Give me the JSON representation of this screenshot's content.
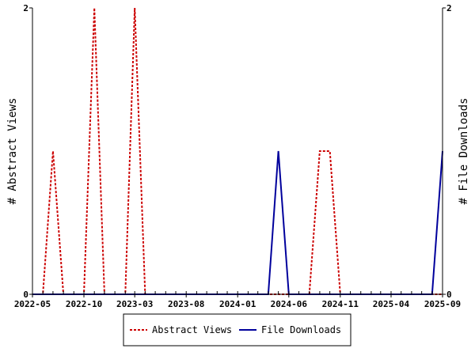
{
  "chart_data": {
    "type": "line",
    "title": "",
    "x_tick_labels": [
      "2022-05",
      "2022-10",
      "2023-03",
      "2023-08",
      "2024-01",
      "2024-06",
      "2024-11",
      "2025-04",
      "2025-09"
    ],
    "xlim": [
      "2022-05-01",
      "2025-09-01"
    ],
    "ylabel_left": "# Abstract Views",
    "ylabel_right": "# File Downloads",
    "ylim_left": [
      0,
      2
    ],
    "ylim_right": [
      0,
      2
    ],
    "y_ticks_left": [
      "0",
      "2"
    ],
    "y_ticks_right": [
      "0",
      "2"
    ],
    "grid": false,
    "legend_position": "bottom",
    "series": [
      {
        "name": "Abstract Views",
        "axis": "left",
        "color": "#cc0000",
        "style": "dashed",
        "points": [
          [
            "2022-05-01",
            0
          ],
          [
            "2022-06-01",
            0
          ],
          [
            "2022-07-01",
            1
          ],
          [
            "2022-08-01",
            0
          ],
          [
            "2022-09-01",
            0
          ],
          [
            "2022-10-01",
            0
          ],
          [
            "2022-11-01",
            2
          ],
          [
            "2022-12-01",
            0
          ],
          [
            "2023-01-01",
            0
          ],
          [
            "2023-02-01",
            0
          ],
          [
            "2023-03-01",
            2
          ],
          [
            "2023-04-01",
            0
          ],
          [
            "2023-05-01",
            0
          ],
          [
            "2024-06-01",
            0
          ],
          [
            "2024-07-01",
            0
          ],
          [
            "2024-08-01",
            0
          ],
          [
            "2024-09-01",
            1
          ],
          [
            "2024-10-01",
            1
          ],
          [
            "2024-11-01",
            0
          ],
          [
            "2024-12-01",
            0
          ],
          [
            "2025-09-01",
            0
          ]
        ]
      },
      {
        "name": "File Downloads",
        "axis": "right",
        "color": "#00009c",
        "style": "solid",
        "points": [
          [
            "2022-05-01",
            0
          ],
          [
            "2024-03-01",
            0
          ],
          [
            "2024-04-01",
            0
          ],
          [
            "2024-05-01",
            1
          ],
          [
            "2024-06-01",
            0
          ],
          [
            "2025-07-01",
            0
          ],
          [
            "2025-08-01",
            0
          ],
          [
            "2025-09-01",
            1
          ]
        ]
      }
    ]
  }
}
